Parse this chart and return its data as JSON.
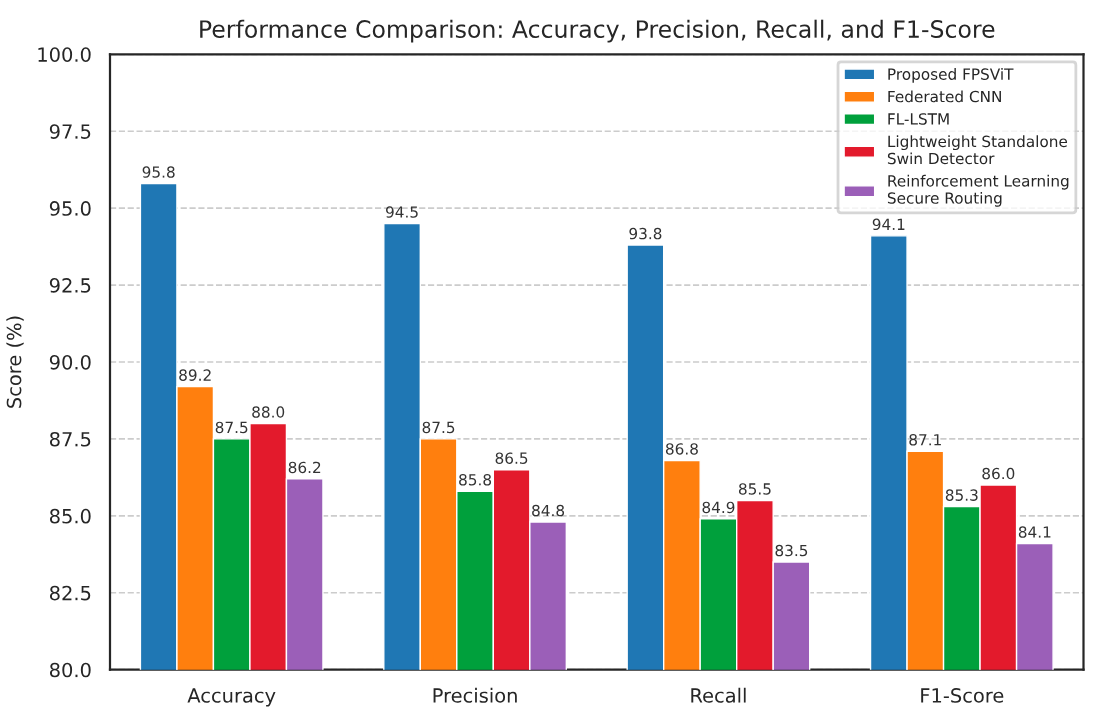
{
  "chart_data": {
    "type": "bar",
    "title": "Performance Comparison: Accuracy, Precision, Recall, and F1-Score",
    "ylabel": "Score (%)",
    "categories": [
      "Accuracy",
      "Precision",
      "Recall",
      "F1-Score"
    ],
    "series": [
      {
        "name": "Proposed FPSViT",
        "color": "#1f77b4",
        "values": [
          95.8,
          94.5,
          93.8,
          94.1
        ],
        "value_labels": [
          "95.8",
          "94.5",
          "93.8",
          "94.1"
        ]
      },
      {
        "name": "Federated CNN",
        "color": "#ff7f0e",
        "values": [
          89.2,
          87.5,
          86.8,
          87.1
        ],
        "value_labels": [
          "89.2",
          "87.5",
          "86.8",
          "87.1"
        ]
      },
      {
        "name": "FL-LSTM",
        "color": "#00a03c",
        "values": [
          87.5,
          85.8,
          84.9,
          85.3
        ],
        "value_labels": [
          "87.5",
          "85.8",
          "84.9",
          "85.3"
        ]
      },
      {
        "name": "Lightweight Standalone\nSwin Detector",
        "color": "#e31a2c",
        "values": [
          88,
          86.5,
          85.5,
          86
        ],
        "value_labels": [
          "88.0",
          "86.5",
          "85.5",
          "86.0"
        ]
      },
      {
        "name": "Reinforcement Learning\nSecure Routing",
        "color": "#9b5fb8",
        "values": [
          86.2,
          84.8,
          83.5,
          84.1
        ],
        "value_labels": [
          "86.2",
          "84.8",
          "83.5",
          "84.1"
        ]
      }
    ],
    "ylim": [
      80,
      100
    ],
    "yticks": [
      {
        "value": 80,
        "label": "80.0"
      },
      82.5,
      {
        "value": 85,
        "label": "85.0"
      },
      87.5,
      {
        "value": 90,
        "label": "90.0"
      },
      92.5,
      {
        "value": 95,
        "label": "95.0"
      },
      97.5,
      {
        "value": 100,
        "label": "100.0"
      }
    ],
    "grid": "y",
    "legend": "top right"
  }
}
